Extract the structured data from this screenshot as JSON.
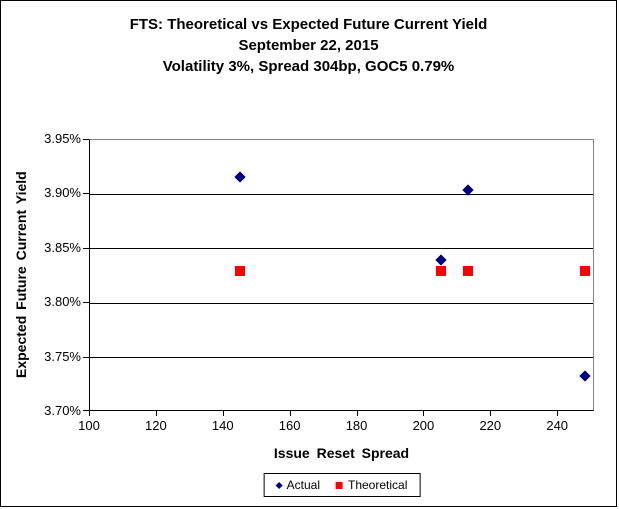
{
  "chart_data": {
    "type": "scatter",
    "title": "FTS: Theoretical vs Expected Future Current Yield",
    "subtitle_lines": [
      "September 22, 2015",
      "Volatility 3%, Spread 304bp, GOC5 0.79%"
    ],
    "xlabel": "Issue Reset Spread",
    "ylabel": "Expected Future Current Yield",
    "xlim": [
      100,
      251
    ],
    "ylim": [
      3.7,
      3.95
    ],
    "x_ticks": [
      100,
      120,
      140,
      160,
      180,
      200,
      220,
      240
    ],
    "y_ticks": [
      3.7,
      3.75,
      3.8,
      3.85,
      3.9,
      3.95
    ],
    "y_tick_labels": [
      "3.70%",
      "3.75%",
      "3.80%",
      "3.85%",
      "3.90%",
      "3.95%"
    ],
    "grid": "horizontal",
    "legend_position": "bottom",
    "series": [
      {
        "name": "Actual",
        "marker": "diamond",
        "color": "#000080",
        "points": [
          [
            145,
            3.916
          ],
          [
            205,
            3.84
          ],
          [
            213,
            3.904
          ],
          [
            248,
            3.733
          ]
        ]
      },
      {
        "name": "Theoretical",
        "marker": "square",
        "color": "#FF0000",
        "points": [
          [
            145,
            3.83
          ],
          [
            205,
            3.83
          ],
          [
            213,
            3.83
          ],
          [
            248,
            3.83
          ]
        ]
      }
    ]
  }
}
